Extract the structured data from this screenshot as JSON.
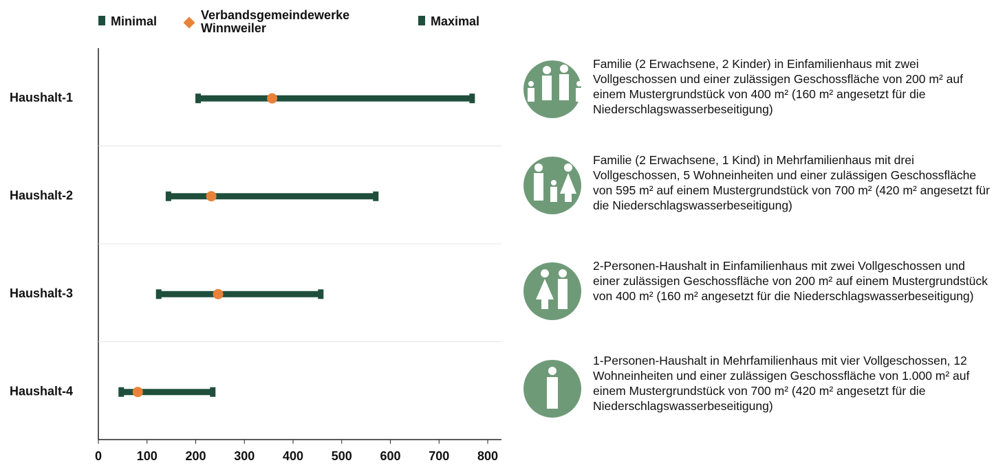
{
  "chart_data": {
    "type": "dumbbell",
    "categories": [
      "Haushalt-1",
      "Haushalt-2",
      "Haushalt-3",
      "Haushalt-4"
    ],
    "series": [
      {
        "name": "Minimal",
        "color": "#1f4f3c",
        "values": [
          205,
          144,
          124,
          47
        ]
      },
      {
        "name": "Verbandsgemeindewerke Winnweiler",
        "color": "#e8823a",
        "values": [
          357,
          232,
          246,
          81
        ]
      },
      {
        "name": "Maximal",
        "color": "#1f4f3c",
        "values": [
          768,
          570,
          457,
          235
        ]
      }
    ],
    "xlim": [
      0,
      800
    ],
    "xticks": [
      0,
      100,
      200,
      300,
      400,
      500,
      600,
      700,
      800
    ],
    "legend": "top",
    "descriptions": [
      "Familie (2 Erwachsene, 2 Kinder) in Einfamilienhaus mit zwei Vollgeschossen und einer zulässigen Geschossfläche von 200 m² auf einem Mustergrundstück von 400 m² (160 m² angesetzt für die Niederschlagswasserbeseitigung)",
      "Familie (2 Erwachsene, 1 Kind) in Mehrfamilienhaus mit drei Vollgeschossen, 5 Wohneinheiten und einer zulässigen Geschossfläche von 595 m² auf einem Mustergrundstück von 700 m² (420 m² angesetzt für die Niederschlagswasserbeseitigung)",
      "2-Personen-Haushalt in Einfamilienhaus mit zwei Vollgeschossen und einer zulässigen Geschossfläche von 200 m² auf einem Mustergrundstück von 400 m² (160 m² angesetzt für die Niederschlagswasserbeseitigung)",
      "1-Personen-Haushalt in Mehrfamilienhaus mit vier Vollgeschossen, 12 Wohneinheiten und einer zulässigen Geschossfläche von 1.000 m² auf einem Mustergrundstück von 700 m² (420 m² angesetzt für die Niederschlagswasserbeseitigung)"
    ]
  }
}
